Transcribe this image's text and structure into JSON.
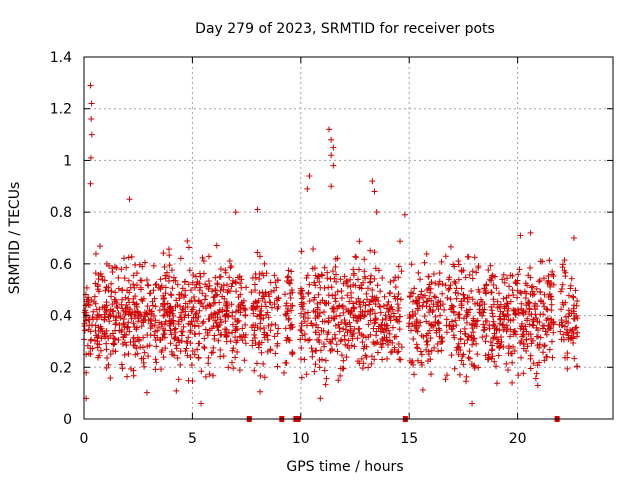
{
  "chart_data": {
    "type": "scatter",
    "title": "Day 279 of 2023, SRMTID for receiver pots",
    "xlabel": "GPS time / hours",
    "ylabel": "SRMTID / TECUs",
    "xlim": [
      0,
      24.4
    ],
    "ylim": [
      0,
      1.4
    ],
    "xticks": [
      0,
      5,
      10,
      15,
      20
    ],
    "yticks": [
      0,
      0.2,
      0.4,
      0.6,
      0.8,
      1,
      1.2,
      1.4
    ],
    "xtick_labels": [
      "0",
      "5",
      "10",
      "15",
      "20"
    ],
    "ytick_labels": [
      "0",
      "0.2",
      "0.4",
      "0.6",
      "0.8",
      "1",
      "1.2",
      "1.4"
    ],
    "grid": true,
    "marker": "+",
    "color": "#d40000",
    "series": [
      {
        "name": "SRMTID",
        "notable_points": [
          {
            "x": 0.3,
            "y": 1.29
          },
          {
            "x": 0.35,
            "y": 1.22
          },
          {
            "x": 0.33,
            "y": 1.16
          },
          {
            "x": 0.36,
            "y": 1.1
          },
          {
            "x": 0.32,
            "y": 1.01
          },
          {
            "x": 0.3,
            "y": 0.91
          },
          {
            "x": 2.1,
            "y": 0.85
          },
          {
            "x": 7.0,
            "y": 0.8
          },
          {
            "x": 8.0,
            "y": 0.81
          },
          {
            "x": 10.4,
            "y": 0.94
          },
          {
            "x": 10.3,
            "y": 0.89
          },
          {
            "x": 11.3,
            "y": 1.12
          },
          {
            "x": 11.4,
            "y": 1.08
          },
          {
            "x": 11.5,
            "y": 1.05
          },
          {
            "x": 11.4,
            "y": 1.02
          },
          {
            "x": 11.5,
            "y": 0.98
          },
          {
            "x": 11.4,
            "y": 0.9
          },
          {
            "x": 13.3,
            "y": 0.92
          },
          {
            "x": 13.4,
            "y": 0.88
          },
          {
            "x": 13.5,
            "y": 0.8
          },
          {
            "x": 14.8,
            "y": 0.79
          },
          {
            "x": 20.6,
            "y": 0.72
          },
          {
            "x": 22.6,
            "y": 0.7
          },
          {
            "x": 0.1,
            "y": 0.08
          },
          {
            "x": 10.9,
            "y": 0.08
          },
          {
            "x": 5.4,
            "y": 0.06
          },
          {
            "x": 17.9,
            "y": 0.06
          }
        ],
        "bulk_range": {
          "x": [
            0,
            22.8
          ],
          "y": [
            0.06,
            0.8
          ]
        }
      }
    ],
    "data_gaps_x": [
      7.6,
      9.1,
      9.75,
      9.85,
      14.8,
      21.8
    ]
  }
}
